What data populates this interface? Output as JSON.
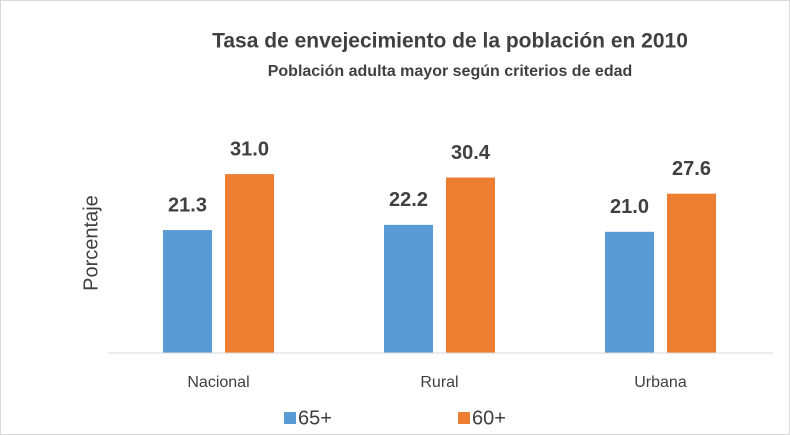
{
  "chart_data": {
    "type": "bar",
    "title": "Tasa de envejecimiento de la población en 2010",
    "subtitle": "Población adulta mayor según criterios de edad",
    "y_label": "Porcentaje",
    "categories": [
      "Nacional",
      "Rural",
      "Urbana"
    ],
    "series": [
      {
        "name": "65+",
        "color": "#5b9bd5",
        "values": [
          21.3,
          22.2,
          21.0
        ],
        "value_labels": [
          "21.3",
          "22.2",
          "21.0"
        ]
      },
      {
        "name": "60+",
        "color": "#ed7d31",
        "values": [
          31.0,
          30.4,
          27.6
        ],
        "value_labels": [
          "31.0",
          "30.4",
          "27.6"
        ]
      }
    ],
    "ylim": [
      0,
      35
    ],
    "legend": "bottom"
  }
}
